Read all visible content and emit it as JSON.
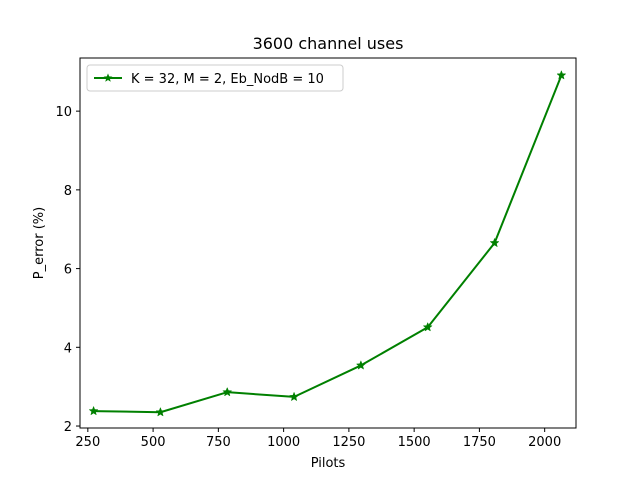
{
  "chart_data": {
    "type": "line",
    "title": "3600 channel uses",
    "xlabel": "Pilots",
    "ylabel": "P_error (%)",
    "xlim": [
      220,
      2120
    ],
    "ylim": [
      1.95,
      11.35
    ],
    "xticks": [
      250,
      500,
      750,
      1000,
      1250,
      1500,
      1750,
      2000
    ],
    "yticks": [
      2,
      4,
      6,
      8,
      10
    ],
    "grid": false,
    "legend_position": "top-left",
    "series": [
      {
        "name": "K = 32, M = 2, Eb_NodB = 10",
        "color": "#008000",
        "marker": "star",
        "x": [
          272,
          528,
          784,
          1040,
          1296,
          1552,
          1808,
          2064
        ],
        "y": [
          2.38,
          2.35,
          2.86,
          2.74,
          3.54,
          4.51,
          6.65,
          10.91
        ]
      }
    ]
  }
}
